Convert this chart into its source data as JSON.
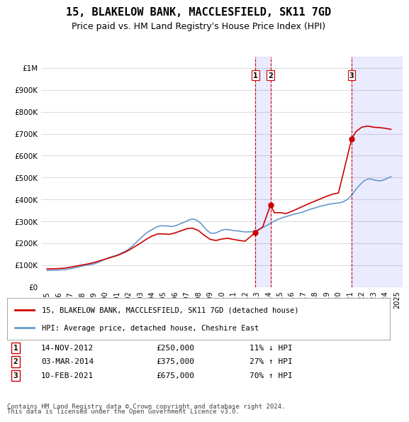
{
  "title": "15, BLAKELOW BANK, MACCLESFIELD, SK11 7GD",
  "subtitle": "Price paid vs. HM Land Registry's House Price Index (HPI)",
  "hpi_line_color": "#6699cc",
  "property_line_color": "#cc0000",
  "transaction_line_color": "#cc0000",
  "background_color": "#ffffff",
  "grid_color": "#dddddd",
  "ylabel_ticks": [
    "£0",
    "£100K",
    "£200K",
    "£300K",
    "£400K",
    "£500K",
    "£600K",
    "£700K",
    "£800K",
    "£900K",
    "£1M"
  ],
  "ytick_values": [
    0,
    100000,
    200000,
    300000,
    400000,
    500000,
    600000,
    700000,
    800000,
    900000,
    1000000
  ],
  "ylim": [
    0,
    1050000
  ],
  "xlim_start": 1994.5,
  "xlim_end": 2025.5,
  "transactions": [
    {
      "num": 1,
      "date": "14-NOV-2012",
      "price": 250000,
      "year": 2012.87,
      "pct": "11% ↓ HPI"
    },
    {
      "num": 2,
      "date": "03-MAR-2014",
      "price": 375000,
      "year": 2014.17,
      "pct": "27% ↑ HPI"
    },
    {
      "num": 3,
      "date": "10-FEB-2021",
      "price": 675000,
      "year": 2021.12,
      "pct": "70% ↑ HPI"
    }
  ],
  "legend_property": "15, BLAKELOW BANK, MACCLESFIELD, SK11 7GD (detached house)",
  "legend_hpi": "HPI: Average price, detached house, Cheshire East",
  "footnote1": "Contains HM Land Registry data © Crown copyright and database right 2024.",
  "footnote2": "This data is licensed under the Open Government Licence v3.0.",
  "hpi_data": {
    "years": [
      1995.0,
      1995.25,
      1995.5,
      1995.75,
      1996.0,
      1996.25,
      1996.5,
      1996.75,
      1997.0,
      1997.25,
      1997.5,
      1997.75,
      1998.0,
      1998.25,
      1998.5,
      1998.75,
      1999.0,
      1999.25,
      1999.5,
      1999.75,
      2000.0,
      2000.25,
      2000.5,
      2000.75,
      2001.0,
      2001.25,
      2001.5,
      2001.75,
      2002.0,
      2002.25,
      2002.5,
      2002.75,
      2003.0,
      2003.25,
      2003.5,
      2003.75,
      2004.0,
      2004.25,
      2004.5,
      2004.75,
      2005.0,
      2005.25,
      2005.5,
      2005.75,
      2006.0,
      2006.25,
      2006.5,
      2006.75,
      2007.0,
      2007.25,
      2007.5,
      2007.75,
      2008.0,
      2008.25,
      2008.5,
      2008.75,
      2009.0,
      2009.25,
      2009.5,
      2009.75,
      2010.0,
      2010.25,
      2010.5,
      2010.75,
      2011.0,
      2011.25,
      2011.5,
      2011.75,
      2012.0,
      2012.25,
      2012.5,
      2012.75,
      2013.0,
      2013.25,
      2013.5,
      2013.75,
      2014.0,
      2014.25,
      2014.5,
      2014.75,
      2015.0,
      2015.25,
      2015.5,
      2015.75,
      2016.0,
      2016.25,
      2016.5,
      2016.75,
      2017.0,
      2017.25,
      2017.5,
      2017.75,
      2018.0,
      2018.25,
      2018.5,
      2018.75,
      2019.0,
      2019.25,
      2019.5,
      2019.75,
      2020.0,
      2020.25,
      2020.5,
      2020.75,
      2021.0,
      2021.25,
      2021.5,
      2021.75,
      2022.0,
      2022.25,
      2022.5,
      2022.75,
      2023.0,
      2023.25,
      2023.5,
      2023.75,
      2024.0,
      2024.25,
      2024.5
    ],
    "values": [
      76000,
      76500,
      77000,
      77500,
      78000,
      79000,
      80000,
      82000,
      84000,
      87000,
      90000,
      93000,
      96000,
      99000,
      101000,
      103000,
      106000,
      110000,
      116000,
      122000,
      128000,
      133000,
      138000,
      142000,
      146000,
      152000,
      158000,
      165000,
      173000,
      184000,
      196000,
      210000,
      222000,
      234000,
      246000,
      255000,
      262000,
      270000,
      277000,
      280000,
      280000,
      279000,
      278000,
      277000,
      280000,
      285000,
      291000,
      296000,
      302000,
      308000,
      311000,
      308000,
      300000,
      288000,
      272000,
      258000,
      248000,
      245000,
      248000,
      254000,
      260000,
      263000,
      263000,
      261000,
      258000,
      257000,
      256000,
      254000,
      252000,
      252000,
      253000,
      256000,
      260000,
      265000,
      272000,
      279000,
      286000,
      294000,
      302000,
      308000,
      313000,
      318000,
      322000,
      326000,
      330000,
      334000,
      337000,
      340000,
      344000,
      349000,
      354000,
      358000,
      362000,
      366000,
      370000,
      373000,
      376000,
      379000,
      381000,
      383000,
      384000,
      387000,
      392000,
      400000,
      412000,
      428000,
      446000,
      462000,
      476000,
      487000,
      493000,
      494000,
      490000,
      487000,
      485000,
      487000,
      492000,
      498000,
      504000
    ]
  },
  "property_data": {
    "years": [
      1995.0,
      1995.5,
      1996.0,
      1996.5,
      1997.0,
      1997.5,
      1998.0,
      1998.5,
      1999.0,
      1999.5,
      2000.0,
      2000.5,
      2001.0,
      2001.5,
      2002.0,
      2002.5,
      2003.0,
      2003.5,
      2004.0,
      2004.5,
      2005.0,
      2005.5,
      2006.0,
      2006.5,
      2007.0,
      2007.5,
      2008.0,
      2008.5,
      2009.0,
      2009.5,
      2010.0,
      2010.5,
      2011.0,
      2011.5,
      2012.0,
      2012.87,
      2013.5,
      2014.17,
      2014.5,
      2015.0,
      2015.5,
      2016.0,
      2016.5,
      2017.0,
      2017.5,
      2018.0,
      2018.5,
      2019.0,
      2019.5,
      2020.0,
      2021.12,
      2021.5,
      2022.0,
      2022.5,
      2023.0,
      2023.5,
      2024.0,
      2024.5
    ],
    "values": [
      83000,
      84000,
      85000,
      87000,
      91000,
      96000,
      101000,
      106000,
      112000,
      120000,
      128000,
      136000,
      144000,
      155000,
      168000,
      184000,
      200000,
      218000,
      233000,
      243000,
      243000,
      241000,
      248000,
      257000,
      267000,
      269000,
      258000,
      236000,
      218000,
      213000,
      220000,
      223000,
      218000,
      213000,
      210000,
      250000,
      275000,
      375000,
      340000,
      340000,
      336000,
      346000,
      358000,
      370000,
      382000,
      393000,
      404000,
      415000,
      424000,
      430000,
      675000,
      710000,
      730000,
      735000,
      730000,
      728000,
      725000,
      720000
    ]
  }
}
